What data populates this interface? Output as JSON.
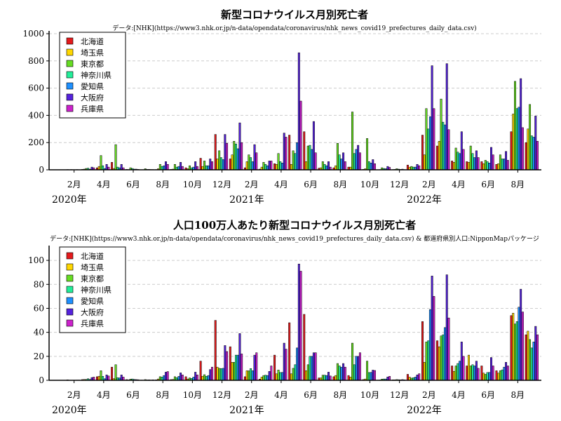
{
  "chart_data": [
    {
      "type": "bar",
      "title": "新型コロナウイルス月別死亡者",
      "subtitle": "データ:[NHK](https://www3.nhk.or.jp/n-data/opendata/coronavirus/nhk_news_covid19_prefectures_daily_data.csv)",
      "ylim": [
        0,
        1000
      ],
      "yticks": [
        0,
        200,
        400,
        600,
        800,
        1000
      ],
      "months": [
        "2020-01",
        "2020-02",
        "2020-03",
        "2020-04",
        "2020-05",
        "2020-06",
        "2020-07",
        "2020-08",
        "2020-09",
        "2020-10",
        "2020-11",
        "2020-12",
        "2021-01",
        "2021-02",
        "2021-03",
        "2021-04",
        "2021-05",
        "2021-06",
        "2021-07",
        "2021-08",
        "2021-09",
        "2021-10",
        "2021-11",
        "2021-12",
        "2022-01",
        "2022-02",
        "2022-03",
        "2022-04",
        "2022-05",
        "2022-06",
        "2022-07",
        "2022-08",
        "2022-09"
      ],
      "month_labels": [
        "2月",
        "4月",
        "6月",
        "8月",
        "10月",
        "12月",
        "2月",
        "4月",
        "6月",
        "8月",
        "10月",
        "12月",
        "2月",
        "4月",
        "6月",
        "8月"
      ],
      "month_label_index": [
        1,
        3,
        5,
        7,
        9,
        11,
        13,
        15,
        17,
        19,
        21,
        23,
        25,
        27,
        29,
        31
      ],
      "year_labels": [
        "2020年",
        "2021年",
        "2022年"
      ],
      "year_label_index": [
        0,
        12,
        24
      ],
      "series": [
        {
          "name": "北海道",
          "color": "#e41a1c",
          "values": [
            0,
            2,
            3,
            15,
            55,
            3,
            1,
            2,
            3,
            15,
            85,
            260,
            80,
            15,
            5,
            45,
            255,
            280,
            12,
            15,
            20,
            3,
            1,
            2,
            35,
            255,
            175,
            65,
            60,
            60,
            40,
            280,
            200
          ]
        },
        {
          "name": "埼玉県",
          "color": "#ffd700",
          "values": [
            0,
            1,
            5,
            25,
            10,
            2,
            1,
            8,
            5,
            8,
            25,
            80,
            110,
            60,
            20,
            40,
            40,
            60,
            15,
            30,
            20,
            8,
            2,
            3,
            20,
            110,
            210,
            55,
            55,
            45,
            45,
            410,
            300
          ]
        },
        {
          "name": "東京都",
          "color": "#66dd22",
          "values": [
            0,
            2,
            10,
            105,
            185,
            15,
            8,
            40,
            40,
            30,
            65,
            140,
            210,
            110,
            55,
            120,
            140,
            175,
            60,
            195,
            425,
            230,
            15,
            8,
            25,
            450,
            520,
            160,
            175,
            70,
            110,
            650,
            480
          ]
        },
        {
          "name": "神奈川県",
          "color": "#22ee99",
          "values": [
            0,
            1,
            12,
            30,
            20,
            10,
            3,
            25,
            20,
            15,
            30,
            90,
            190,
            90,
            40,
            60,
            120,
            180,
            40,
            110,
            120,
            60,
            10,
            5,
            20,
            300,
            350,
            130,
            120,
            60,
            80,
            450,
            250
          ]
        },
        {
          "name": "愛知県",
          "color": "#1e90ff",
          "values": [
            0,
            1,
            5,
            10,
            15,
            5,
            3,
            30,
            25,
            20,
            30,
            75,
            155,
            60,
            30,
            50,
            200,
            150,
            30,
            80,
            150,
            50,
            8,
            3,
            20,
            390,
            330,
            120,
            90,
            50,
            80,
            460,
            240
          ]
        },
        {
          "name": "大阪府",
          "color": "#5522dd",
          "values": [
            0,
            2,
            20,
            40,
            40,
            5,
            2,
            60,
            55,
            60,
            80,
            260,
            345,
            185,
            65,
            270,
            860,
            355,
            60,
            125,
            180,
            75,
            25,
            5,
            40,
            765,
            780,
            280,
            140,
            165,
            135,
            670,
            395
          ]
        },
        {
          "name": "兵庫県",
          "color": "#cc22cc",
          "values": [
            0,
            1,
            15,
            20,
            15,
            3,
            2,
            40,
            25,
            25,
            60,
            195,
            200,
            125,
            65,
            240,
            505,
            125,
            20,
            60,
            125,
            45,
            18,
            2,
            30,
            450,
            295,
            150,
            90,
            110,
            70,
            310,
            210
          ]
        }
      ]
    },
    {
      "type": "bar",
      "title": "人口100万人あたり新型コロナウイルス月別死亡者",
      "subtitle": "データ:[NHK](https://www3.nhk.or.jp/n-data/opendata/coronavirus/nhk_news_covid19_prefectures_daily_data.csv) & 都道府県別人口:NipponMapパッケージ",
      "ylim": [
        0,
        110
      ],
      "yticks": [
        0,
        20,
        40,
        60,
        80,
        100
      ],
      "month_labels": [
        "2月",
        "4月",
        "6月",
        "8月",
        "10月",
        "12月",
        "2月",
        "4月",
        "6月",
        "8月",
        "10月",
        "12月",
        "2月",
        "4月",
        "6月",
        "8月"
      ],
      "month_label_index": [
        1,
        3,
        5,
        7,
        9,
        11,
        13,
        15,
        17,
        19,
        21,
        23,
        25,
        27,
        29,
        31
      ],
      "year_labels": [
        "2020年",
        "2021年",
        "2022年"
      ],
      "year_label_index": [
        0,
        12,
        24
      ],
      "series": [
        {
          "name": "北海道",
          "color": "#e41a1c",
          "values": [
            0,
            0.4,
            0.6,
            3,
            11,
            0.6,
            0.2,
            0.4,
            0.6,
            3,
            16,
            50,
            28,
            3,
            1,
            21,
            48,
            55,
            2,
            3,
            4,
            0.6,
            0.2,
            0.4,
            5,
            49,
            33,
            12,
            12,
            12,
            8,
            54,
            38
          ]
        },
        {
          "name": "埼玉県",
          "color": "#ffd700",
          "values": [
            0,
            0.1,
            0.7,
            3.4,
            1.4,
            0.3,
            0.1,
            1.1,
            0.7,
            1.1,
            3.4,
            11,
            15,
            8,
            2.7,
            5.4,
            5.4,
            8,
            2,
            4,
            2.7,
            1.1,
            0.3,
            0.4,
            2.7,
            15,
            28,
            7.5,
            21,
            6,
            6,
            56,
            41
          ]
        },
        {
          "name": "東京都",
          "color": "#66dd22",
          "values": [
            0,
            0.1,
            0.7,
            8,
            13,
            1,
            0.6,
            3,
            3,
            2,
            4.7,
            10,
            15,
            7.9,
            4,
            8.6,
            10,
            13,
            4.3,
            14,
            31,
            16,
            1,
            0.6,
            1.8,
            32,
            37,
            12,
            12,
            5,
            8,
            47,
            34
          ]
        },
        {
          "name": "神奈川県",
          "color": "#22ee99",
          "values": [
            0,
            0.1,
            1.3,
            3.3,
            2.2,
            1.1,
            0.3,
            2.7,
            2.2,
            1.6,
            3.3,
            9.8,
            21,
            9.8,
            4.3,
            6.5,
            13,
            20,
            4.3,
            12,
            13,
            6.5,
            1.1,
            0.5,
            2.2,
            33,
            38,
            14,
            13,
            6.5,
            8.7,
            49,
            27
          ]
        },
        {
          "name": "愛知県",
          "color": "#1e90ff",
          "values": [
            0,
            0.1,
            0.7,
            1.3,
            2,
            0.7,
            0.4,
            4,
            3.3,
            2.7,
            4,
            10,
            21,
            8,
            4,
            6.6,
            27,
            20,
            4,
            11,
            20,
            6.6,
            1.1,
            0.4,
            2.7,
            59,
            44,
            16,
            12,
            6.6,
            11,
            61,
            32
          ]
        },
        {
          "name": "大阪府",
          "color": "#5522dd",
          "values": [
            0,
            0.2,
            2.3,
            4.5,
            4.5,
            0.6,
            0.2,
            6.8,
            6.2,
            6.8,
            9,
            29,
            39,
            21,
            7.4,
            31,
            97,
            23,
            6.8,
            14,
            20,
            8.5,
            2.8,
            0.6,
            4.5,
            87,
            88,
            32,
            16,
            19,
            15,
            76,
            45
          ]
        },
        {
          "name": "兵庫県",
          "color": "#cc22cc",
          "values": [
            0,
            0.2,
            2.7,
            3.6,
            2.7,
            0.5,
            0.4,
            7.3,
            4.5,
            4.5,
            11,
            24,
            22,
            23,
            12,
            26,
            91,
            23,
            3.6,
            11,
            23,
            8.2,
            3.3,
            0.4,
            5.5,
            70,
            52,
            20,
            10,
            12,
            12,
            57,
            38
          ]
        }
      ]
    }
  ]
}
